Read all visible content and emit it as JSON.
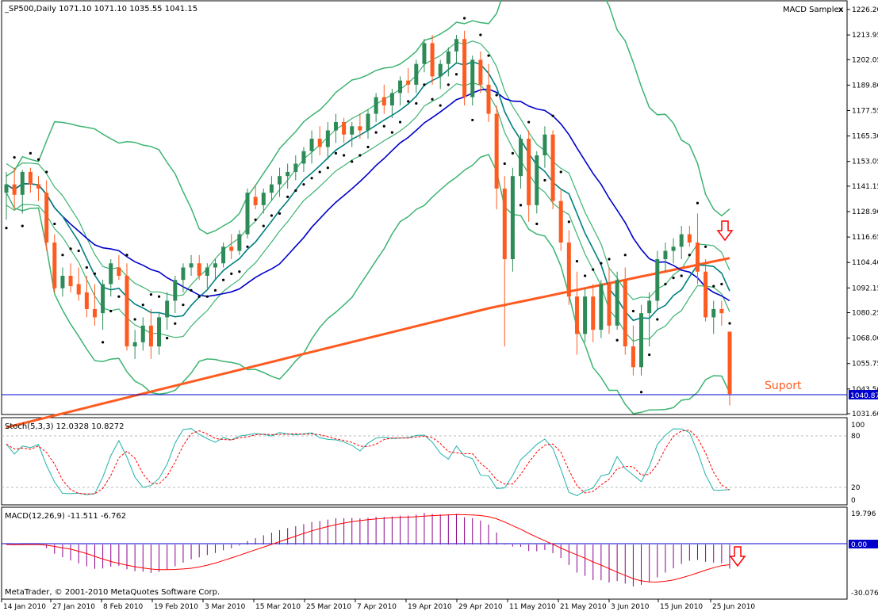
{
  "main": {
    "header": "_SP500,Daily  1071.10 1071.10 1035.55 1041.15",
    "indicator_name": "MACD Sample",
    "close_indicator": "x",
    "support_label": "Suport",
    "current_price_tag": "1040.87",
    "y_ticks": [
      "1226.20",
      "1213.95",
      "1202.05",
      "1189.80",
      "1177.55",
      "1165.30",
      "1153.05",
      "1141.15",
      "1128.90",
      "1116.65",
      "1104.40",
      "1092.15",
      "1080.25",
      "1068.00",
      "1055.75",
      "1043.50",
      "1031.60"
    ]
  },
  "stoch": {
    "header": "Stoch(5,3,3) 12.0328 10.8272",
    "y_ticks": [
      "100",
      "80",
      "20",
      "0"
    ]
  },
  "macd": {
    "header": "MACD(12,26,9) -11.511 -6.762",
    "y_ticks": [
      "19.796",
      "0.00",
      "-30.076"
    ],
    "zero_tag": "0.00"
  },
  "x_ticks": [
    "14 Jan 2010",
    "27 Jan 2010",
    "8 Feb 2010",
    "19 Feb 2010",
    "3 Mar 2010",
    "15 Mar 2010",
    "25 Mar 2010",
    "7 Apr 2010",
    "19 Apr 2010",
    "29 Apr 2010",
    "11 May 2010",
    "21 May 2010",
    "3 Jun 2010",
    "15 Jun 2010",
    "25 Jun 2010"
  ],
  "copyright": "MetaTrader, © 2001-2010 MetaQuotes Software Corp.",
  "colors": {
    "up_candle": "#2e8b57",
    "down_candle": "#ff5a1f",
    "ma_fast": "#008080",
    "ma_mid": "#0000cd",
    "ma_slow": "#ff5a1f",
    "bollinger": "#3cb371",
    "psar": "#000000",
    "support_line": "#0000cd",
    "stoch_main": "#20b2aa",
    "stoch_signal": "#ff0000",
    "macd_hist": "#8b008b",
    "macd_signal": "#ff0000",
    "arrow": "#ff0000"
  },
  "chart_data": {
    "type": "candlestick",
    "title": "_SP500,Daily",
    "timeframe": "Daily",
    "last_bar": {
      "open": 1071.1,
      "high": 1071.1,
      "low": 1035.55,
      "close": 1041.15
    },
    "ylim": [
      1031.6,
      1226.2
    ],
    "support_level": 1040.87,
    "indicators": {
      "stochastic": {
        "params": "5,3,3",
        "main": 12.0328,
        "signal": 10.8272,
        "levels": [
          20,
          80
        ],
        "ylim": [
          0,
          100
        ]
      },
      "macd": {
        "params": "12,26,9",
        "main": -11.511,
        "signal": -6.762,
        "ylim": [
          -30.076,
          19.796
        ]
      }
    },
    "candles": [
      [
        1138,
        1148,
        1125,
        1142
      ],
      [
        1142,
        1150,
        1130,
        1137
      ],
      [
        1137,
        1149,
        1128,
        1148
      ],
      [
        1148,
        1150,
        1138,
        1142
      ],
      [
        1142,
        1146,
        1134,
        1140
      ],
      [
        1138,
        1144,
        1110,
        1114
      ],
      [
        1114,
        1118,
        1090,
        1092
      ],
      [
        1092,
        1102,
        1088,
        1098
      ],
      [
        1098,
        1104,
        1090,
        1093
      ],
      [
        1094,
        1102,
        1086,
        1089
      ],
      [
        1090,
        1098,
        1078,
        1082
      ],
      [
        1082,
        1094,
        1074,
        1078
      ],
      [
        1080,
        1096,
        1072,
        1094
      ],
      [
        1094,
        1106,
        1088,
        1104
      ],
      [
        1102,
        1108,
        1096,
        1098
      ],
      [
        1098,
        1104,
        1062,
        1064
      ],
      [
        1064,
        1072,
        1058,
        1066
      ],
      [
        1066,
        1078,
        1062,
        1074
      ],
      [
        1074,
        1082,
        1058,
        1064
      ],
      [
        1064,
        1080,
        1060,
        1078
      ],
      [
        1078,
        1090,
        1072,
        1086
      ],
      [
        1086,
        1098,
        1080,
        1096
      ],
      [
        1096,
        1104,
        1090,
        1102
      ],
      [
        1102,
        1108,
        1098,
        1104
      ],
      [
        1104,
        1108,
        1096,
        1098
      ],
      [
        1098,
        1104,
        1092,
        1102
      ],
      [
        1102,
        1106,
        1096,
        1104
      ],
      [
        1104,
        1114,
        1102,
        1112
      ],
      [
        1112,
        1118,
        1106,
        1110
      ],
      [
        1110,
        1120,
        1108,
        1118
      ],
      [
        1118,
        1140,
        1116,
        1138
      ],
      [
        1136,
        1142,
        1130,
        1132
      ],
      [
        1132,
        1140,
        1128,
        1138
      ],
      [
        1138,
        1146,
        1134,
        1142
      ],
      [
        1142,
        1150,
        1136,
        1146
      ],
      [
        1146,
        1152,
        1140,
        1148
      ],
      [
        1148,
        1156,
        1144,
        1152
      ],
      [
        1152,
        1160,
        1148,
        1158
      ],
      [
        1158,
        1168,
        1152,
        1164
      ],
      [
        1164,
        1170,
        1156,
        1160
      ],
      [
        1160,
        1172,
        1154,
        1168
      ],
      [
        1168,
        1176,
        1162,
        1172
      ],
      [
        1172,
        1174,
        1162,
        1166
      ],
      [
        1166,
        1172,
        1160,
        1170
      ],
      [
        1170,
        1176,
        1164,
        1168
      ],
      [
        1168,
        1178,
        1164,
        1176
      ],
      [
        1176,
        1186,
        1172,
        1184
      ],
      [
        1184,
        1190,
        1176,
        1180
      ],
      [
        1180,
        1188,
        1174,
        1186
      ],
      [
        1186,
        1194,
        1180,
        1192
      ],
      [
        1192,
        1198,
        1186,
        1190
      ],
      [
        1190,
        1202,
        1186,
        1200
      ],
      [
        1200,
        1212,
        1196,
        1210
      ],
      [
        1210,
        1214,
        1190,
        1194
      ],
      [
        1194,
        1202,
        1188,
        1200
      ],
      [
        1200,
        1208,
        1194,
        1206
      ],
      [
        1206,
        1214,
        1200,
        1212
      ],
      [
        1212,
        1216,
        1180,
        1184
      ],
      [
        1184,
        1204,
        1180,
        1202
      ],
      [
        1202,
        1206,
        1186,
        1190
      ],
      [
        1190,
        1200,
        1172,
        1176
      ],
      [
        1176,
        1180,
        1130,
        1140
      ],
      [
        1140,
        1146,
        1064,
        1106
      ],
      [
        1106,
        1150,
        1100,
        1146
      ],
      [
        1146,
        1166,
        1140,
        1164
      ],
      [
        1164,
        1168,
        1124,
        1132
      ],
      [
        1132,
        1158,
        1128,
        1156
      ],
      [
        1156,
        1170,
        1150,
        1166
      ],
      [
        1166,
        1168,
        1130,
        1134
      ],
      [
        1134,
        1140,
        1110,
        1114
      ],
      [
        1114,
        1120,
        1084,
        1088
      ],
      [
        1088,
        1100,
        1060,
        1070
      ],
      [
        1070,
        1092,
        1066,
        1088
      ],
      [
        1088,
        1094,
        1066,
        1072
      ],
      [
        1072,
        1096,
        1068,
        1094
      ],
      [
        1094,
        1102,
        1070,
        1074
      ],
      [
        1074,
        1100,
        1072,
        1096
      ],
      [
        1096,
        1102,
        1060,
        1064
      ],
      [
        1064,
        1074,
        1050,
        1054
      ],
      [
        1054,
        1084,
        1050,
        1080
      ],
      [
        1080,
        1090,
        1064,
        1086
      ],
      [
        1086,
        1110,
        1082,
        1106
      ],
      [
        1106,
        1114,
        1100,
        1110
      ],
      [
        1110,
        1116,
        1104,
        1112
      ],
      [
        1112,
        1122,
        1106,
        1118
      ],
      [
        1118,
        1122,
        1112,
        1114
      ],
      [
        1114,
        1128,
        1094,
        1100
      ],
      [
        1100,
        1106,
        1076,
        1078
      ],
      [
        1078,
        1086,
        1070,
        1082
      ],
      [
        1082,
        1086,
        1074,
        1080
      ],
      [
        1071.1,
        1071.1,
        1035.55,
        1041.15
      ]
    ]
  }
}
